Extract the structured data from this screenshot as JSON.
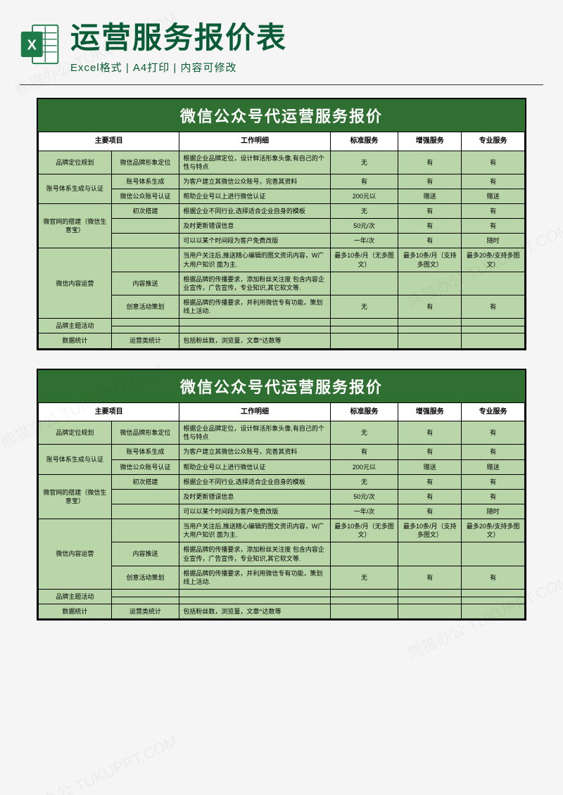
{
  "colors": {
    "brand_green": "#1f7a4a",
    "header_bg": "#2f6f31",
    "cell_green": "#b8d6a8",
    "title_color": "#0a5c36"
  },
  "header": {
    "title": "运营服务报价表",
    "subtitle": "Excel格式 | A4打印 | 内容可修改"
  },
  "sheet": {
    "title": "微信公众号代运营服务报价",
    "columns": [
      "主要项目",
      "工作明细",
      "标准服务",
      "增强服务",
      "专业服务"
    ],
    "col_widths_pct": [
      15,
      14,
      31,
      14,
      13,
      13
    ],
    "rows": [
      {
        "cat": "品牌定位规划",
        "cat_rows": 1,
        "sub": "微信品牌形象定位",
        "desc": "根据企业品牌定位，设计鲜活形象头像,有自己的个性与特点",
        "std": "无",
        "enh": "有",
        "pro": "有"
      },
      {
        "cat": "账号体系生成与认证",
        "cat_rows": 2,
        "sub": "账号体系生成",
        "desc": "为客户建立其微信公众账号，完善其资料",
        "std": "有",
        "enh": "有",
        "pro": "有"
      },
      {
        "cat": "",
        "sub": "微信公众账号认证",
        "desc": "帮助企业号以上进行微信认证",
        "std": "200元以",
        "enh": "赠送",
        "pro": "赠送"
      },
      {
        "cat": "微官网的搭建（微信生意宝）",
        "cat_rows": 3,
        "sub": "初次搭建",
        "desc": "根据企业不同行业,选择适合企业自身的模板",
        "std": "无",
        "enh": "有",
        "pro": "有"
      },
      {
        "cat": "",
        "sub": "",
        "desc": "及时更新错误信息",
        "std": "50元/次",
        "enh": "有",
        "pro": "有"
      },
      {
        "cat": "",
        "sub": "",
        "desc": "可以以某个时间段为客户免费改版",
        "std": "一年/次",
        "enh": "有",
        "pro": "随时"
      },
      {
        "cat": "微信内容运营",
        "cat_rows": 3,
        "sub": "",
        "desc": "当用户关注后,推送精心编辑的图文资讯内容，W广大用户知识 面为主.",
        "std": "最多10条/月（无多图文）",
        "enh": "最多10条/月（支持多图文）",
        "pro": "最多20条/支持多图文）"
      },
      {
        "cat": "",
        "sub": "内容推送",
        "desc": "根据品牌的传播要求，添加粉丝关注度 包含内容企业宣传，广告宣传，专业知识,其它软文等.",
        "std": "",
        "enh": "",
        "pro": ""
      },
      {
        "cat": "",
        "sub": "创意活动策划",
        "desc": "根据品牌的传播要求，并利用微信专有功能，策划线上活动.",
        "std": "无",
        "enh": "有",
        "pro": "有"
      },
      {
        "cat": "品牌主题活动",
        "cat_rows": 2,
        "sub": "",
        "desc": "",
        "std": "",
        "enh": "",
        "pro": ""
      },
      {
        "cat": "",
        "sub": "",
        "desc": "",
        "std": "",
        "enh": "",
        "pro": ""
      },
      {
        "cat": "数据统计",
        "cat_rows": 1,
        "sub": "运营类统计",
        "desc": "包括粉丝数，浏览量，文章^达数等",
        "std": "",
        "enh": "",
        "pro": ""
      }
    ]
  },
  "watermark_text": "熊猫办公 TUKUPPT.COM"
}
